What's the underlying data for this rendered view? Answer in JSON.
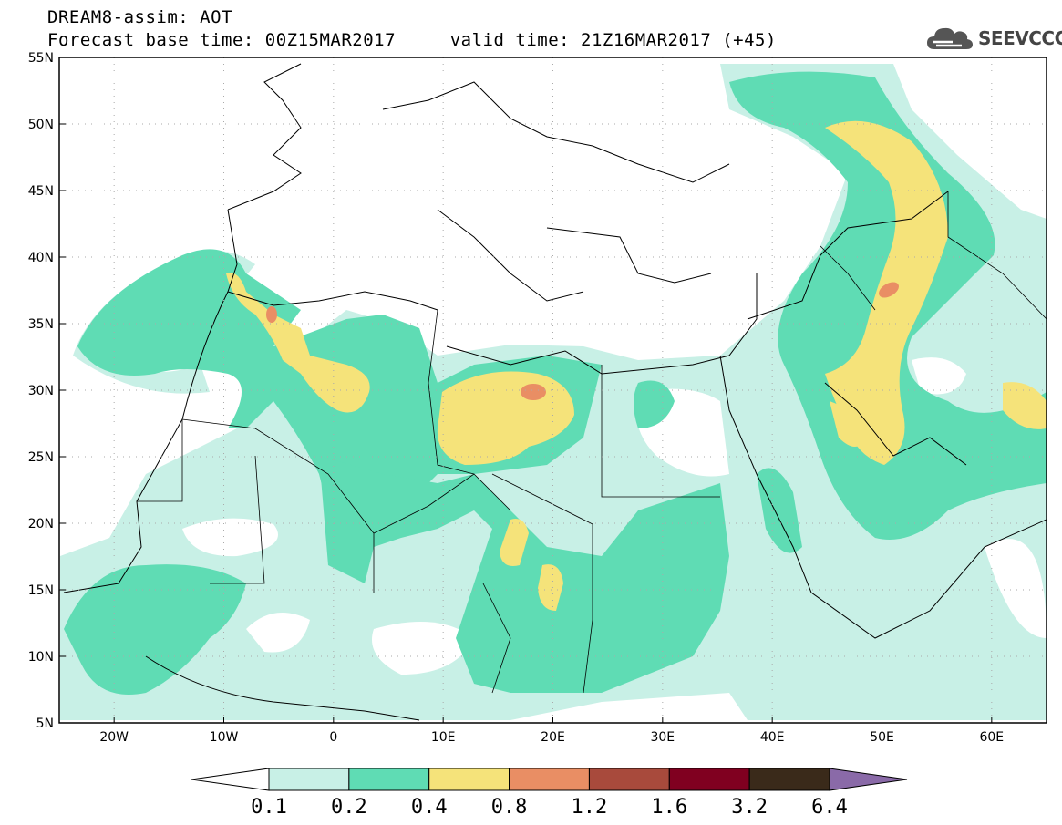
{
  "header": {
    "line1": "DREAM8-assim: AOT",
    "line2": "Forecast base time: 00Z15MAR2017     valid time: 21Z16MAR2017 (+45)"
  },
  "logo": {
    "text": "SEEVCCC",
    "icon": "cloud-logo-icon"
  },
  "map": {
    "lat_labels": [
      "55N",
      "50N",
      "45N",
      "40N",
      "35N",
      "30N",
      "25N",
      "20N",
      "15N",
      "10N",
      "5N"
    ],
    "lon_labels": [
      "20W",
      "10W",
      "0",
      "10E",
      "20E",
      "30E",
      "40E",
      "50E",
      "60E"
    ],
    "lat_range": [
      5,
      55
    ],
    "lon_range": [
      -25,
      65
    ],
    "grid": "dotted"
  },
  "colorbar": {
    "labels": [
      "0.1",
      "0.2",
      "0.4",
      "0.8",
      "1.2",
      "1.6",
      "3.2",
      "6.4"
    ],
    "colors": [
      "#ffffff",
      "#c8f0e6",
      "#5fdcb4",
      "#f5e37a",
      "#e98e64",
      "#a84a3c",
      "#800020",
      "#3a2a1a",
      "#8a6aa8"
    ]
  },
  "legend_colors": {
    "c1": "#c8f0e6",
    "c2": "#5fdcb4",
    "c3": "#f5e37a",
    "c4": "#e98e64"
  }
}
